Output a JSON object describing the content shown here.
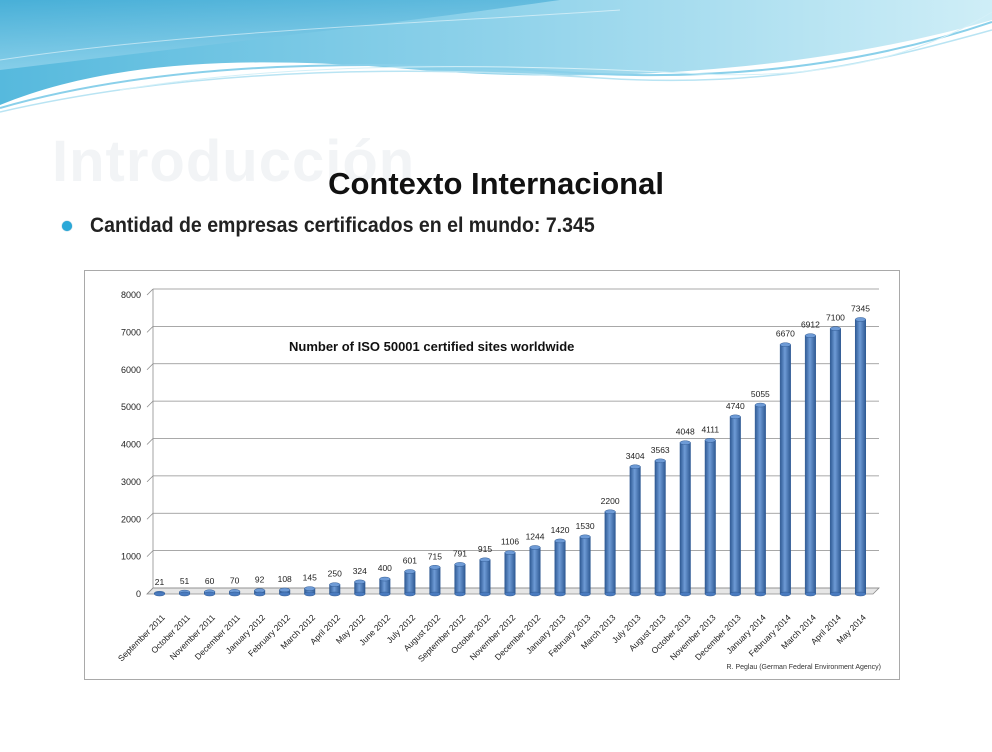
{
  "slide": {
    "ghost_title": "Introducción",
    "title": "Contexto Internacional",
    "bullet": "Cantidad de empresas certificados en el mundo: 7.345"
  },
  "colors": {
    "bar": "#4a7bbf",
    "bar_dark": "#2f5a94",
    "bar_light": "#6e9bd6",
    "grid": "#8c8c8c",
    "bullet": "#2aa8d8",
    "wave": "#4fb6dc"
  },
  "chart_data": {
    "type": "bar",
    "title": "Number of ISO 50001 certified sites worldwide",
    "source": "R. Peglau (German Federal Environment Agency)",
    "xlabel": "",
    "ylabel": "",
    "ylim": [
      0,
      8000
    ],
    "yticks": [
      0,
      1000,
      2000,
      3000,
      4000,
      5000,
      6000,
      7000,
      8000
    ],
    "grid": true,
    "categories": [
      "September 2011",
      "October 2011",
      "November 2011",
      "December 2011",
      "January 2012",
      "February 2012",
      "March 2012",
      "April 2012",
      "May 2012",
      "June 2012",
      "July 2012",
      "August 2012",
      "September 2012",
      "October 2012",
      "November 2012",
      "December 2012",
      "January 2013",
      "February 2013",
      "March 2013",
      "July 2013",
      "August 2013",
      "October 2013",
      "November 2013",
      "December 2013",
      "January 2014",
      "February 2014",
      "March 2014",
      "April 2014",
      "May 2014"
    ],
    "values": [
      21,
      51,
      60,
      70,
      92,
      108,
      145,
      250,
      324,
      400,
      601,
      715,
      791,
      915,
      1106,
      1244,
      1420,
      1530,
      2200,
      3404,
      3563,
      4048,
      4111,
      4740,
      5055,
      6670,
      6912,
      7100,
      7345
    ]
  }
}
